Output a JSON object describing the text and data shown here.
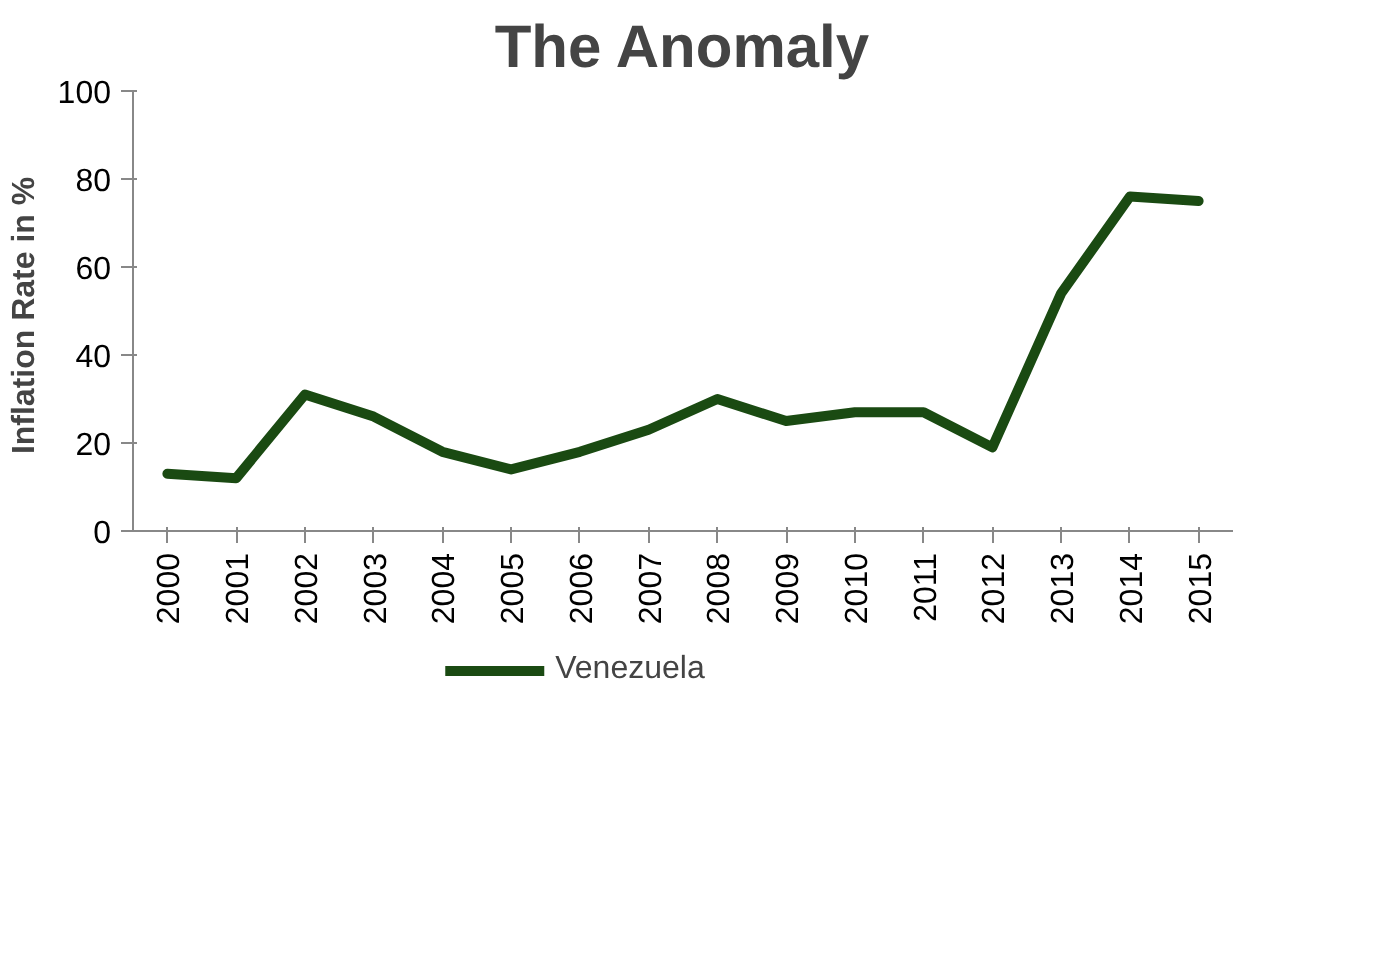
{
  "chart_data": {
    "type": "line",
    "title": "The Anomaly",
    "ylabel": "Inflation  Rate in %",
    "categories": [
      "2000",
      "2001",
      "2002",
      "2003",
      "2004",
      "2005",
      "2006",
      "2007",
      "2008",
      "2009",
      "2010",
      "2011",
      "2012",
      "2013",
      "2014",
      "2015"
    ],
    "series": [
      {
        "name": "Venezuela",
        "color": "#1a4a12",
        "values": [
          13,
          12,
          31,
          26,
          18,
          14,
          18,
          23,
          30,
          25,
          27,
          27,
          19,
          54,
          76,
          75
        ]
      }
    ],
    "ylim": [
      0,
      100
    ],
    "yticks": [
      0,
      20,
      40,
      60,
      80,
      100
    ],
    "grid": false,
    "legend": "bottom",
    "marker": "none",
    "line_style": "solid"
  }
}
